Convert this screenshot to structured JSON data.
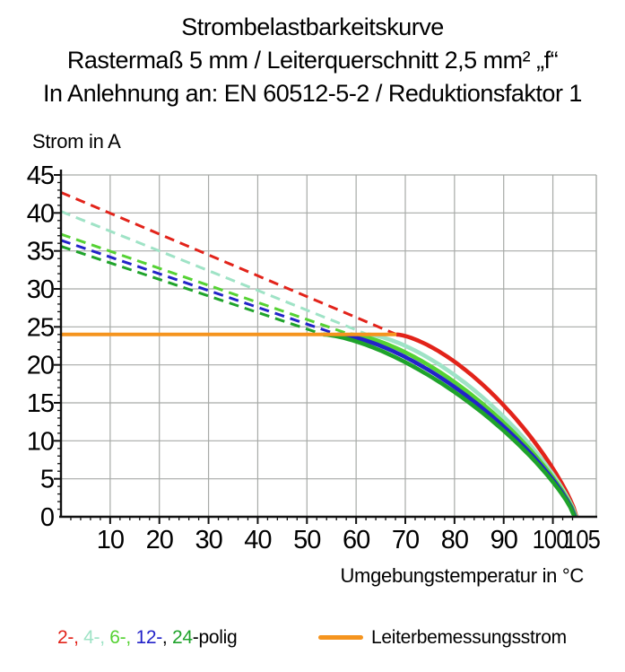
{
  "chart_data": {
    "type": "line",
    "title": "Strombelastbarkeitskurve",
    "subtitle": "Rastermaß 5 mm / Leiterquerschnitt 2,5 mm² „f“",
    "subtitle2": "In Anlehnung an: EN 60512-5-2 / Reduktionsfaktor 1",
    "xlabel": "Umgebungstemperatur in °C",
    "ylabel": "Strom in A",
    "xlim": [
      0,
      108.8
    ],
    "ylim": [
      0,
      45
    ],
    "x_major_ticks": [
      10,
      20,
      30,
      40,
      50,
      60,
      70,
      80,
      90,
      100,
      105
    ],
    "x_minor_step": 2,
    "y_major_ticks": [
      0,
      5,
      10,
      15,
      20,
      25,
      30,
      35,
      40,
      45
    ],
    "y_minor_step": 1,
    "grid": true,
    "grid_color": "#a7aaa7",
    "axis_color": "#111111",
    "rated_current": 24,
    "reference_line": {
      "label": "Leiterbemessungsstrom",
      "value": 24,
      "color": "#f5941e",
      "T_start": 0,
      "T_end": 68.2
    },
    "series": [
      {
        "name": "2-polig",
        "color": "#e2231a",
        "dashed_then_solid": true,
        "I_at_0C": 42.7,
        "T_cross_rated": 68.2,
        "T_zero": 104.8,
        "points": [
          [
            0,
            42.7
          ],
          [
            20,
            37.2
          ],
          [
            40,
            31.7
          ],
          [
            60,
            26.3
          ],
          [
            68.2,
            24
          ],
          [
            80,
            20.4
          ],
          [
            90,
            14.7
          ],
          [
            100,
            6.4
          ],
          [
            104.8,
            0
          ]
        ]
      },
      {
        "name": "4-polig",
        "color": "#9fe3c6",
        "dashed_then_solid": true,
        "I_at_0C": 40.2,
        "T_cross_rated": 62.3,
        "T_zero": 104.7,
        "points": [
          [
            0,
            40.2
          ],
          [
            20,
            35.0
          ],
          [
            40,
            29.8
          ],
          [
            62.3,
            24
          ],
          [
            80,
            19.1
          ],
          [
            90,
            13.2
          ],
          [
            100,
            5.6
          ],
          [
            104.7,
            0
          ]
        ]
      },
      {
        "name": "6-polig",
        "color": "#55d233",
        "dashed_then_solid": true,
        "I_at_0C": 37.2,
        "T_cross_rated": 58.8,
        "T_zero": 104.6,
        "points": [
          [
            0,
            37.2
          ],
          [
            20,
            32.7
          ],
          [
            40,
            28.2
          ],
          [
            58.8,
            24
          ],
          [
            80,
            18.3
          ],
          [
            90,
            12.4
          ],
          [
            100,
            5.2
          ],
          [
            104.6,
            0
          ]
        ]
      },
      {
        "name": "12-polig",
        "color": "#2323c9",
        "dashed_then_solid": true,
        "I_at_0C": 36.4,
        "T_cross_rated": 56.2,
        "T_zero": 104.5,
        "points": [
          [
            0,
            36.4
          ],
          [
            20,
            32.0
          ],
          [
            40,
            27.6
          ],
          [
            56.2,
            24
          ],
          [
            80,
            17.2
          ],
          [
            90,
            11.9
          ],
          [
            100,
            4.9
          ],
          [
            104.5,
            0
          ]
        ]
      },
      {
        "name": "24-polig",
        "color": "#1fa32b",
        "dashed_then_solid": true,
        "I_at_0C": 35.6,
        "T_cross_rated": 53.3,
        "T_zero": 104.4,
        "points": [
          [
            0,
            35.6
          ],
          [
            20,
            31.2
          ],
          [
            40,
            26.9
          ],
          [
            53.3,
            24
          ],
          [
            80,
            16.4
          ],
          [
            90,
            11.3
          ],
          [
            100,
            4.6
          ],
          [
            104.4,
            0
          ]
        ]
      }
    ],
    "legend_position": "bottom"
  },
  "legend": {
    "poles_segments": [
      {
        "text": "2-,",
        "color": "#e2231a"
      },
      {
        "text": " 4-,",
        "color": "#9fe3c6"
      },
      {
        "text": " 6-,",
        "color": "#55d233"
      },
      {
        "text": " 12-",
        "color": "#2323c9"
      },
      {
        "text": ", ",
        "color": "#000000"
      },
      {
        "text": "24",
        "color": "#1fa32b"
      },
      {
        "text": "-polig",
        "color": "#000000"
      }
    ],
    "rated_current_label": "Leiterbemessungsstrom"
  }
}
